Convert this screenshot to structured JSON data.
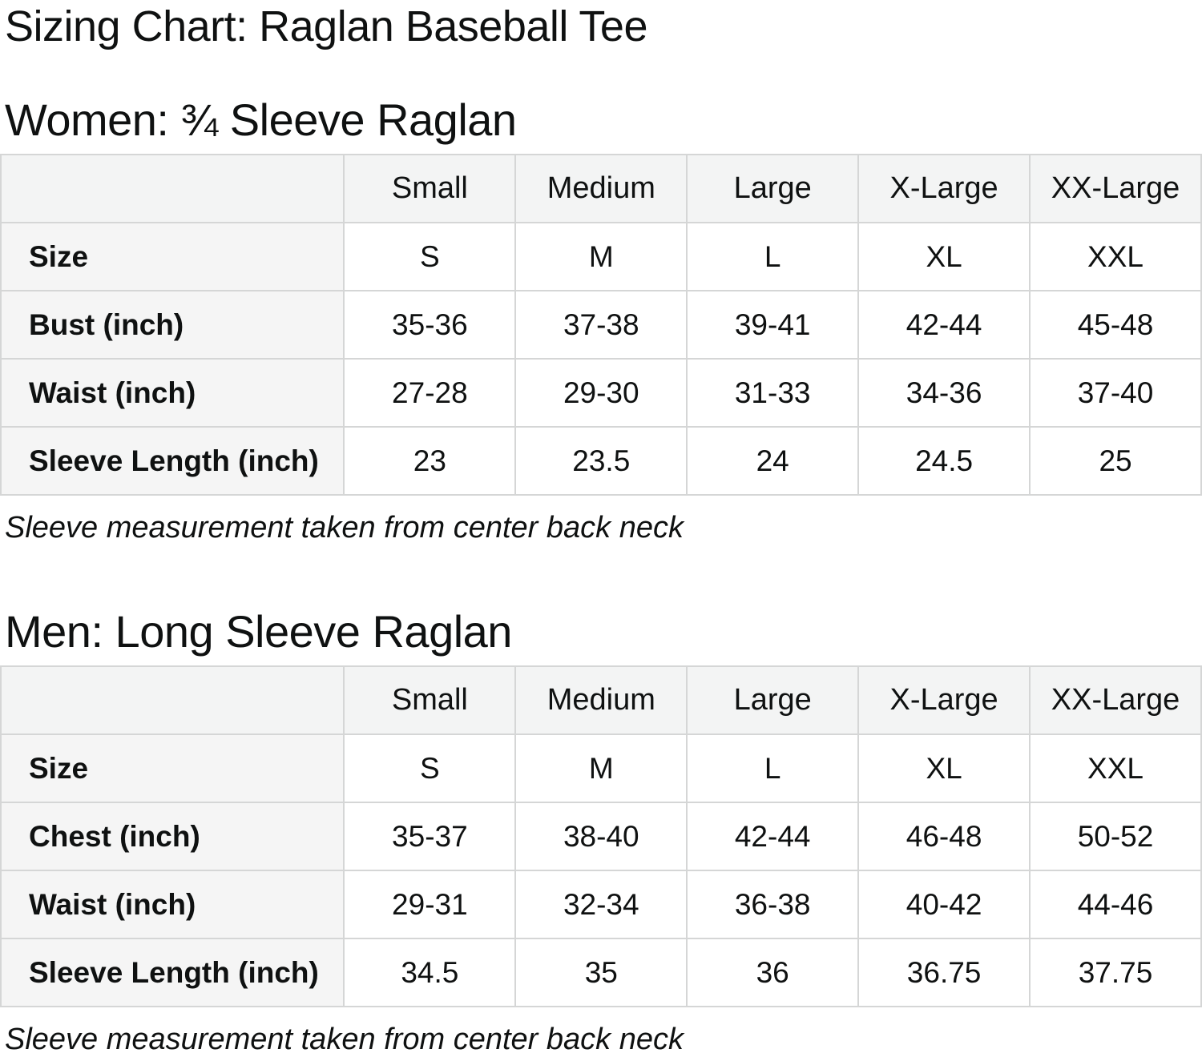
{
  "page_title": "Sizing Chart: Raglan Baseball Tee",
  "colors": {
    "text": "#0f1111",
    "border": "#d5d6d6",
    "header_bg": "#f3f4f4",
    "row_label_bg": "#f5f5f5",
    "page_bg": "#ffffff"
  },
  "sections": [
    {
      "key": "women",
      "heading": "Women: ¾ Sleeve Raglan",
      "note": "Sleeve measurement taken from center back neck",
      "table": {
        "columns": [
          "",
          "Small",
          "Medium",
          "Large",
          "X-Large",
          "XX-Large"
        ],
        "rows": [
          {
            "label": "Size",
            "values": [
              "S",
              "M",
              "L",
              "XL",
              "XXL"
            ]
          },
          {
            "label": "Bust (inch)",
            "values": [
              "35-36",
              "37-38",
              "39-41",
              "42-44",
              "45-48"
            ]
          },
          {
            "label": "Waist (inch)",
            "values": [
              "27-28",
              "29-30",
              "31-33",
              "34-36",
              "37-40"
            ]
          },
          {
            "label": "Sleeve Length (inch)",
            "values": [
              "23",
              "23.5",
              "24",
              "24.5",
              "25"
            ]
          }
        ]
      }
    },
    {
      "key": "men",
      "heading": "Men: Long Sleeve Raglan",
      "note": "Sleeve measurement taken from center back neck",
      "table": {
        "columns": [
          "",
          "Small",
          "Medium",
          "Large",
          "X-Large",
          "XX-Large"
        ],
        "rows": [
          {
            "label": "Size",
            "values": [
              "S",
              "M",
              "L",
              "XL",
              "XXL"
            ]
          },
          {
            "label": "Chest (inch)",
            "values": [
              "35-37",
              "38-40",
              "42-44",
              "46-48",
              "50-52"
            ]
          },
          {
            "label": "Waist (inch)",
            "values": [
              "29-31",
              "32-34",
              "36-38",
              "40-42",
              "44-46"
            ]
          },
          {
            "label": "Sleeve Length (inch)",
            "values": [
              "34.5",
              "35",
              "36",
              "36.75",
              "37.75"
            ]
          }
        ]
      }
    }
  ]
}
